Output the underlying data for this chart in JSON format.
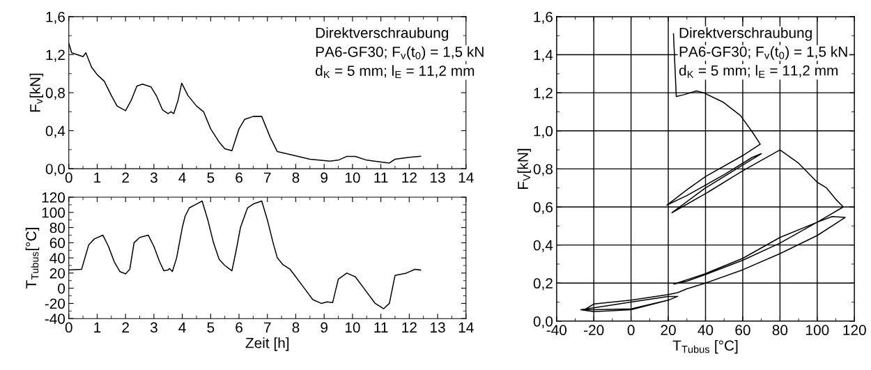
{
  "chart_data": [
    {
      "type": "line",
      "ylabel": "F$_{v}$[kN]",
      "grid": false,
      "xlim": [
        0,
        14
      ],
      "ylim": [
        0,
        1.6
      ],
      "xticks": [
        0,
        1,
        2,
        3,
        4,
        5,
        6,
        7,
        8,
        9,
        10,
        11,
        12,
        13,
        14
      ],
      "yticks": [
        {
          "value": 0,
          "label": "0,0"
        },
        {
          "value": 0.4,
          "label": "0,4"
        },
        {
          "value": 0.8,
          "label": "0,8"
        },
        {
          "value": 1.2,
          "label": "1,2"
        },
        {
          "value": 1.6,
          "label": "1,6"
        }
      ],
      "annotations": [
        "Direktverschraubung",
        "PA6-GF30; F$_{v}$(t$_{0}$) = 1,5 kN",
        "d$_{K}$ = 5 mm; l$_{E}$ = 11,2 mm"
      ],
      "series": [
        {
          "color": "#000000",
          "x": [
            0,
            0.1,
            0.5,
            0.6,
            0.8,
            1.0,
            1.25,
            1.5,
            1.7,
            2.0,
            2.2,
            2.4,
            2.6,
            2.9,
            3.1,
            3.3,
            3.5,
            3.6,
            3.7,
            3.85,
            3.98,
            4.2,
            4.5,
            4.75,
            5.0,
            5.3,
            5.5,
            5.75,
            6.0,
            6.2,
            6.5,
            6.8,
            7.1,
            7.35,
            7.8,
            8.5,
            9.2,
            9.5,
            9.8,
            10.1,
            10.5,
            11.0,
            11.3,
            11.5,
            12.0,
            12.4
          ],
          "values": [
            1.32,
            1.22,
            1.18,
            1.22,
            1.07,
            0.99,
            0.92,
            0.77,
            0.66,
            0.61,
            0.72,
            0.87,
            0.89,
            0.86,
            0.76,
            0.62,
            0.58,
            0.6,
            0.58,
            0.72,
            0.9,
            0.77,
            0.66,
            0.6,
            0.42,
            0.28,
            0.21,
            0.19,
            0.42,
            0.52,
            0.55,
            0.55,
            0.33,
            0.18,
            0.15,
            0.1,
            0.08,
            0.09,
            0.13,
            0.13,
            0.09,
            0.07,
            0.06,
            0.1,
            0.12,
            0.13
          ]
        }
      ]
    },
    {
      "type": "line",
      "xlabel": "Zeit [h]",
      "ylabel": "T$_{Tubus}$[°C]",
      "grid": false,
      "xlim": [
        0,
        14
      ],
      "ylim": [
        -40,
        120
      ],
      "xticks": [
        0,
        1,
        2,
        3,
        4,
        5,
        6,
        7,
        8,
        9,
        10,
        11,
        12,
        13,
        14
      ],
      "yticks": [
        -40,
        -20,
        0,
        20,
        40,
        60,
        80,
        100,
        120
      ],
      "series": [
        {
          "color": "#000000",
          "x": [
            0,
            0.45,
            0.7,
            0.9,
            1.2,
            1.4,
            1.6,
            1.8,
            2.0,
            2.15,
            2.3,
            2.5,
            2.8,
            3.0,
            3.2,
            3.35,
            3.5,
            3.55,
            3.65,
            3.8,
            4.0,
            4.1,
            4.25,
            4.5,
            4.7,
            4.9,
            5.1,
            5.3,
            5.5,
            5.75,
            5.9,
            6.05,
            6.3,
            6.5,
            6.8,
            7.0,
            7.2,
            7.35,
            7.55,
            7.8,
            8.0,
            8.3,
            8.6,
            8.9,
            9.1,
            9.3,
            9.5,
            9.8,
            10.1,
            10.5,
            10.8,
            11.1,
            11.3,
            11.5,
            11.9,
            12.2,
            12.4
          ],
          "values": [
            24,
            25,
            57,
            65,
            70,
            55,
            35,
            22,
            19,
            25,
            60,
            67,
            70,
            55,
            35,
            23,
            24,
            26,
            22,
            40,
            80,
            95,
            106,
            111,
            115,
            90,
            60,
            38,
            30,
            23,
            50,
            80,
            106,
            111,
            115,
            90,
            60,
            40,
            31,
            25,
            15,
            0,
            -15,
            -20,
            -18,
            -19,
            12,
            20,
            15,
            -5,
            -20,
            -27,
            -20,
            17,
            20,
            25,
            24
          ]
        }
      ]
    },
    {
      "type": "line",
      "xlabel": "T$_{Tubus}$ [°C]",
      "ylabel": "F$_{V}$[kN]",
      "grid": true,
      "xlim": [
        -40,
        120
      ],
      "ylim": [
        0,
        1.6
      ],
      "xticks": [
        -40,
        -20,
        0,
        20,
        40,
        60,
        80,
        100,
        120
      ],
      "yticks": [
        {
          "value": 0,
          "label": "0,0"
        },
        {
          "value": 0.2,
          "label": "0,2"
        },
        {
          "value": 0.4,
          "label": "0,4"
        },
        {
          "value": 0.6,
          "label": "0,6"
        },
        {
          "value": 0.8,
          "label": "0,8"
        },
        {
          "value": 1.0,
          "label": "1,0"
        },
        {
          "value": 1.2,
          "label": "1,2"
        },
        {
          "value": 1.4,
          "label": "1,4"
        },
        {
          "value": 1.6,
          "label": "1,6"
        }
      ],
      "annotations": [
        "Direktverschraubung",
        "PA6-GF30; F$_{v}$(t$_{0}$) = 1,5 kN",
        "d$_{K}$ = 5 mm; l$_{E}$ = 11,2 mm"
      ],
      "series": [
        {
          "color": "#000000",
          "x": [
            22.8,
            24.3,
            28.5,
            35.1,
            39,
            49.6,
            58.8,
            65.4,
            69.4,
            60,
            40,
            30,
            19.3,
            30,
            50,
            65,
            70,
            60,
            40,
            22,
            40,
            60,
            80,
            90,
            100,
            105,
            110,
            114,
            100,
            80,
            60,
            40,
            30,
            23,
            40,
            60,
            80,
            100,
            108,
            115,
            100,
            80,
            60,
            40,
            30,
            25,
            20,
            0,
            -20,
            -25,
            -20,
            0,
            20,
            25,
            20,
            0,
            -20,
            -27,
            -20,
            0,
            20,
            25
          ],
          "values": [
            1.51,
            1.18,
            1.19,
            1.21,
            1.2,
            1.15,
            1.08,
            0.99,
            0.93,
            0.87,
            0.76,
            0.69,
            0.61,
            0.66,
            0.77,
            0.86,
            0.88,
            0.82,
            0.7,
            0.57,
            0.67,
            0.79,
            0.9,
            0.83,
            0.73,
            0.7,
            0.64,
            0.6,
            0.52,
            0.41,
            0.32,
            0.245,
            0.21,
            0.195,
            0.25,
            0.33,
            0.44,
            0.52,
            0.55,
            0.545,
            0.45,
            0.355,
            0.27,
            0.2,
            0.17,
            0.15,
            0.14,
            0.11,
            0.09,
            0.06,
            0.06,
            0.065,
            0.11,
            0.13,
            0.13,
            0.1,
            0.07,
            0.06,
            0.05,
            0.06,
            0.11,
            0.13
          ]
        }
      ]
    }
  ]
}
